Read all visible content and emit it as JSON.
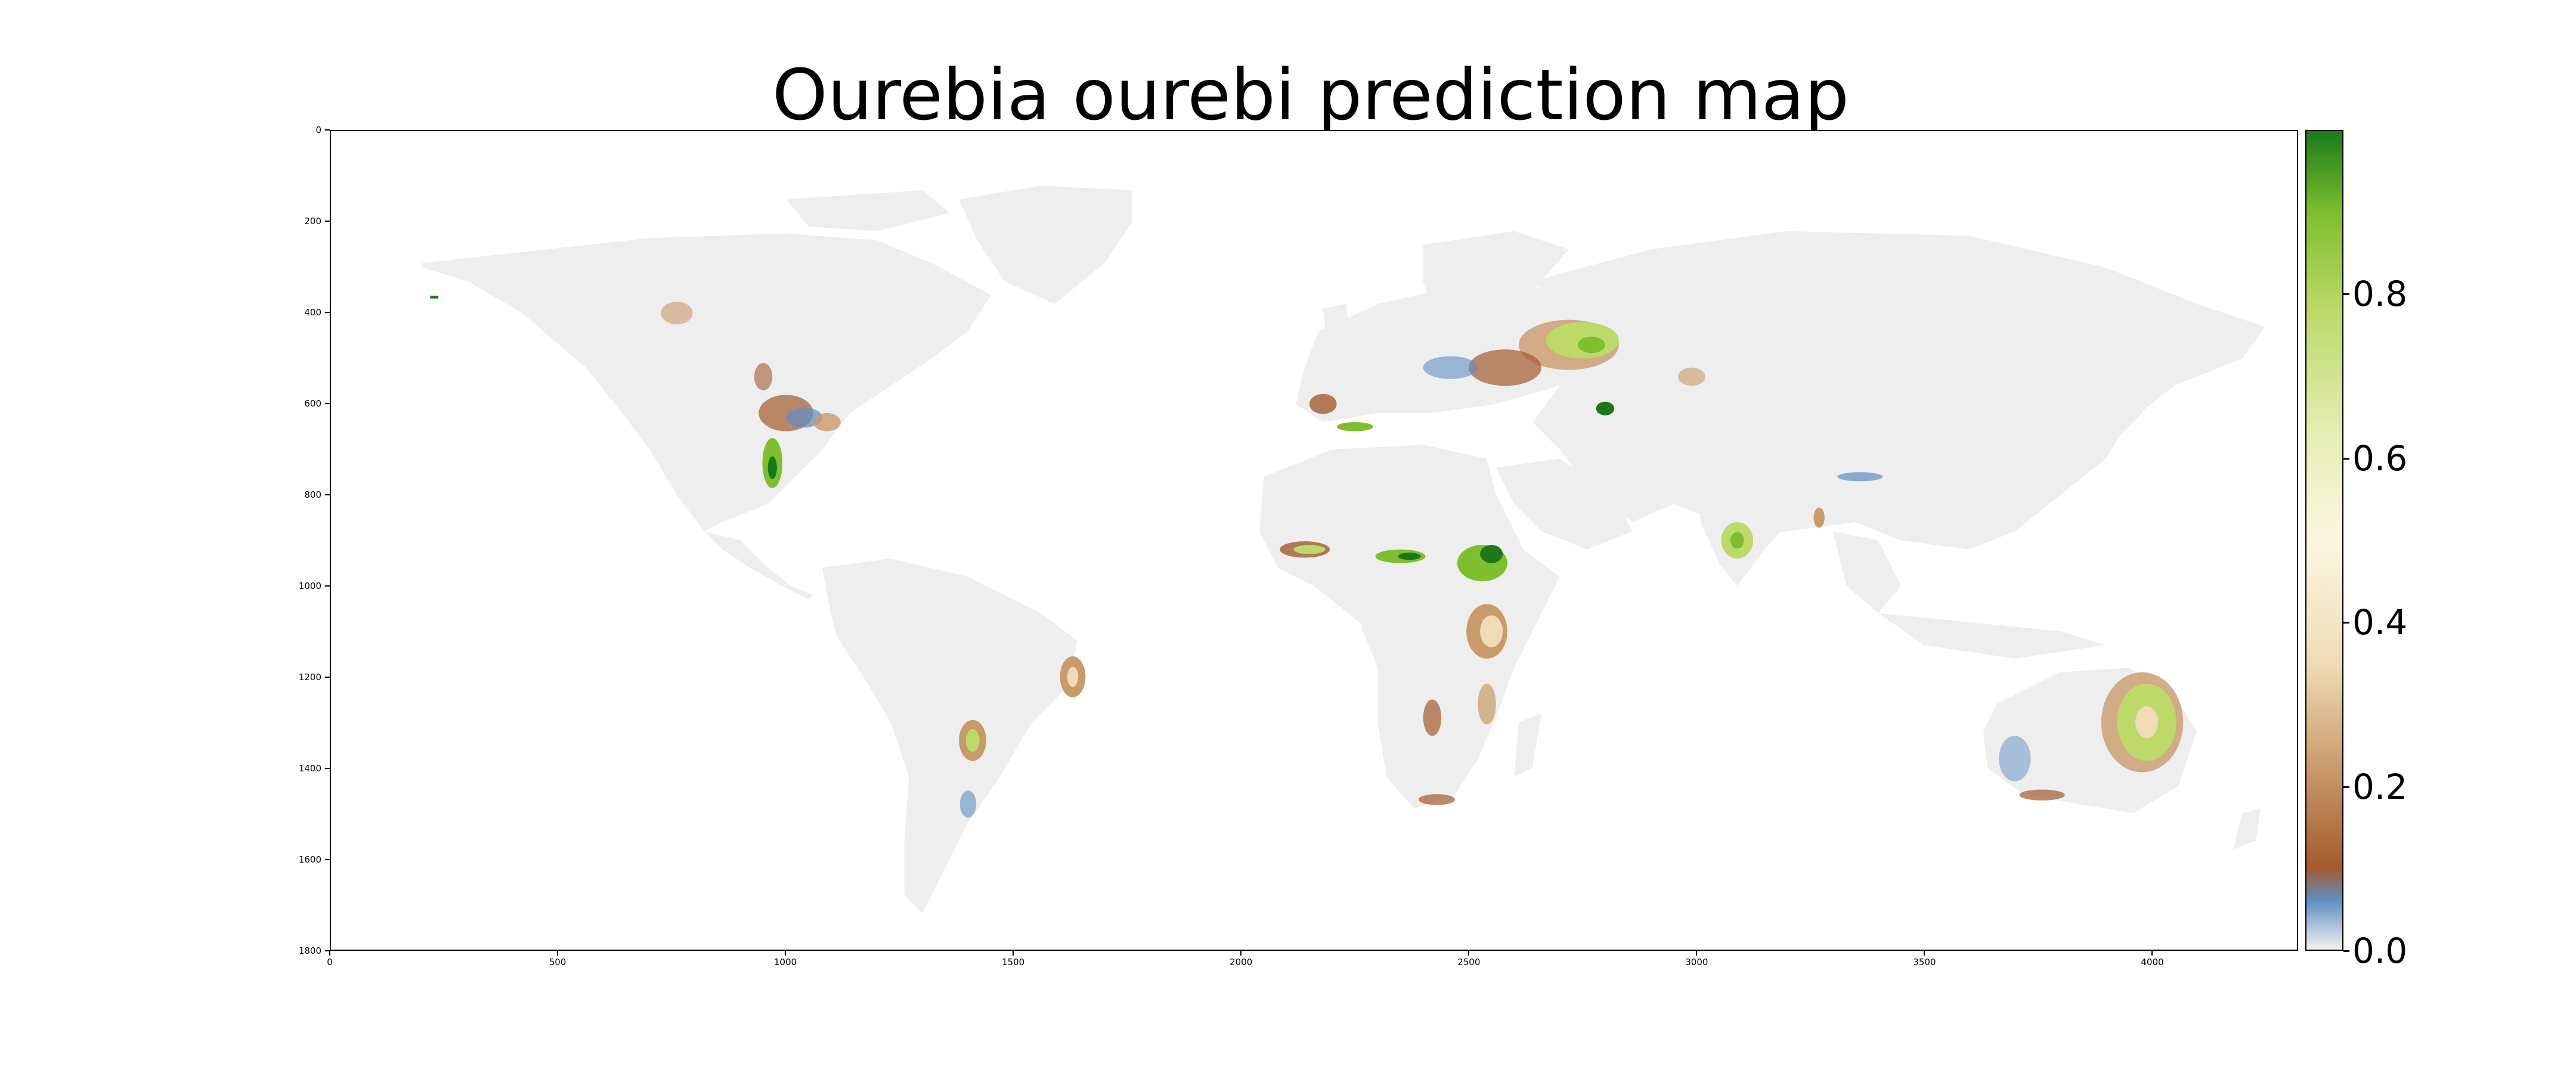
{
  "title": "Ourebia ourebi prediction map",
  "map": {
    "type": "raster-heatmap",
    "x_range": [
      0,
      4320
    ],
    "y_range": [
      0,
      1800
    ],
    "y_inverted": true,
    "land_color": "#eeeeee",
    "background_color": "#ffffff",
    "x_ticks": [
      "0",
      "500",
      "1000",
      "1500",
      "2000",
      "2500",
      "3000",
      "3500",
      "4000"
    ],
    "y_ticks": [
      "0",
      "200",
      "400",
      "600",
      "800",
      "1000",
      "1200",
      "1400",
      "1600",
      "1800"
    ]
  },
  "colorbar": {
    "range": [
      0.0,
      1.0
    ],
    "tick_labels": [
      "0.0",
      "0.2",
      "0.4",
      "0.6",
      "0.8"
    ],
    "colors": [
      {
        "stop": 0.0,
        "color": "#f2f2f2"
      },
      {
        "stop": 0.06,
        "color": "#5f8fc2"
      },
      {
        "stop": 0.1,
        "color": "#a45a2f"
      },
      {
        "stop": 0.22,
        "color": "#c99a6a"
      },
      {
        "stop": 0.35,
        "color": "#efdcb6"
      },
      {
        "stop": 0.5,
        "color": "#fbf6e2"
      },
      {
        "stop": 0.62,
        "color": "#e8efb8"
      },
      {
        "stop": 0.78,
        "color": "#bcd96a"
      },
      {
        "stop": 0.9,
        "color": "#7fbe2e"
      },
      {
        "stop": 1.0,
        "color": "#1a7a1a"
      }
    ]
  }
}
